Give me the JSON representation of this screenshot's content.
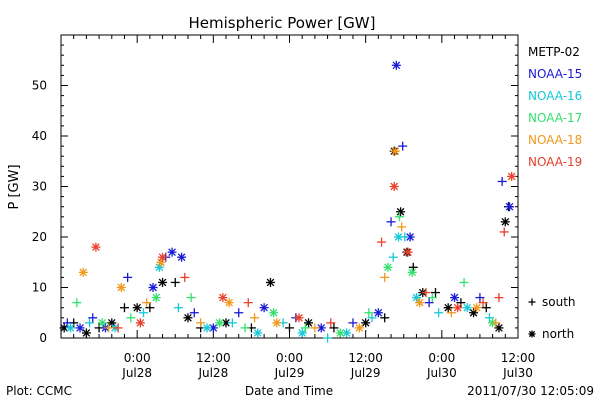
{
  "chart_data": {
    "type": "scatter",
    "title": "Hemispheric Power [GW]",
    "xlabel": "Date and Time",
    "ylabel": "P [GW]",
    "xlim": [
      "2011-07-27 12:00",
      "2011-07-30 12:00"
    ],
    "ylim": [
      0,
      60
    ],
    "x_tick_labels": [
      {
        "x": "2011-07-28 00:00",
        "time": "0:00",
        "date": "Jul28"
      },
      {
        "x": "2011-07-28 12:00",
        "time": "12:00",
        "date": "Jul28"
      },
      {
        "x": "2011-07-29 00:00",
        "time": "0:00",
        "date": "Jul29"
      },
      {
        "x": "2011-07-29 12:00",
        "time": "12:00",
        "date": "Jul29"
      },
      {
        "x": "2011-07-30 00:00",
        "time": "0:00",
        "date": "Jul30"
      },
      {
        "x": "2011-07-30 12:00",
        "time": "12:00",
        "date": "Jul30"
      }
    ],
    "y_ticks": [
      0,
      10,
      20,
      30,
      40,
      50
    ],
    "grid": false,
    "legend_position": "right",
    "marker_legend": [
      {
        "marker": "+",
        "label": "south"
      },
      {
        "marker": "*",
        "label": "north"
      }
    ],
    "series": [
      {
        "name": "METP-02",
        "color": "#000000",
        "points": [
          {
            "x": "2011-07-27 12:30",
            "y": 2,
            "m": "*"
          },
          {
            "x": "2011-07-27 14:00",
            "y": 3,
            "m": "+"
          },
          {
            "x": "2011-07-27 16:00",
            "y": 1,
            "m": "*"
          },
          {
            "x": "2011-07-27 18:00",
            "y": 2,
            "m": "+"
          },
          {
            "x": "2011-07-27 20:00",
            "y": 3,
            "m": "*"
          },
          {
            "x": "2011-07-27 22:00",
            "y": 6,
            "m": "+"
          },
          {
            "x": "2011-07-28 00:00",
            "y": 6,
            "m": "*"
          },
          {
            "x": "2011-07-28 02:00",
            "y": 6,
            "m": "+"
          },
          {
            "x": "2011-07-28 04:00",
            "y": 11,
            "m": "*"
          },
          {
            "x": "2011-07-28 06:00",
            "y": 11,
            "m": "+"
          },
          {
            "x": "2011-07-28 08:00",
            "y": 4,
            "m": "*"
          },
          {
            "x": "2011-07-28 10:00",
            "y": 2,
            "m": "+"
          },
          {
            "x": "2011-07-28 14:00",
            "y": 3,
            "m": "*"
          },
          {
            "x": "2011-07-28 18:00",
            "y": 2,
            "m": "+"
          },
          {
            "x": "2011-07-28 21:00",
            "y": 11,
            "m": "*"
          },
          {
            "x": "2011-07-29 00:00",
            "y": 2,
            "m": "+"
          },
          {
            "x": "2011-07-29 03:00",
            "y": 3,
            "m": "*"
          },
          {
            "x": "2011-07-29 07:00",
            "y": 2,
            "m": "+"
          },
          {
            "x": "2011-07-29 12:00",
            "y": 3,
            "m": "*"
          },
          {
            "x": "2011-07-29 15:00",
            "y": 4,
            "m": "+"
          },
          {
            "x": "2011-07-29 16:30",
            "y": 37,
            "m": "*"
          },
          {
            "x": "2011-07-29 17:30",
            "y": 25,
            "m": "*"
          },
          {
            "x": "2011-07-29 18:30",
            "y": 17,
            "m": "*"
          },
          {
            "x": "2011-07-29 19:30",
            "y": 14,
            "m": "+"
          },
          {
            "x": "2011-07-29 21:00",
            "y": 9,
            "m": "*"
          },
          {
            "x": "2011-07-29 23:00",
            "y": 9,
            "m": "+"
          },
          {
            "x": "2011-07-30 01:00",
            "y": 6,
            "m": "*"
          },
          {
            "x": "2011-07-30 03:00",
            "y": 7,
            "m": "+"
          },
          {
            "x": "2011-07-30 05:00",
            "y": 5,
            "m": "*"
          },
          {
            "x": "2011-07-30 07:00",
            "y": 6,
            "m": "+"
          },
          {
            "x": "2011-07-30 09:00",
            "y": 2,
            "m": "*"
          },
          {
            "x": "2011-07-30 10:00",
            "y": 23,
            "m": "*"
          },
          {
            "x": "2011-07-30 10:30",
            "y": 26,
            "m": "+"
          }
        ]
      },
      {
        "name": "NOAA-15",
        "color": "#1a1ad6",
        "points": [
          {
            "x": "2011-07-27 13:00",
            "y": 3,
            "m": "+"
          },
          {
            "x": "2011-07-27 15:00",
            "y": 2,
            "m": "*"
          },
          {
            "x": "2011-07-27 17:00",
            "y": 4,
            "m": "+"
          },
          {
            "x": "2011-07-27 19:00",
            "y": 2,
            "m": "*"
          },
          {
            "x": "2011-07-27 22:30",
            "y": 12,
            "m": "+"
          },
          {
            "x": "2011-07-28 02:30",
            "y": 10,
            "m": "*"
          },
          {
            "x": "2011-07-28 04:30",
            "y": 16,
            "m": "+"
          },
          {
            "x": "2011-07-28 05:30",
            "y": 17,
            "m": "*"
          },
          {
            "x": "2011-07-28 07:00",
            "y": 16,
            "m": "*"
          },
          {
            "x": "2011-07-28 09:00",
            "y": 5,
            "m": "+"
          },
          {
            "x": "2011-07-28 12:00",
            "y": 2,
            "m": "*"
          },
          {
            "x": "2011-07-28 16:00",
            "y": 5,
            "m": "+"
          },
          {
            "x": "2011-07-28 20:00",
            "y": 6,
            "m": "*"
          },
          {
            "x": "2011-07-29 01:00",
            "y": 4,
            "m": "+"
          },
          {
            "x": "2011-07-29 05:00",
            "y": 2,
            "m": "*"
          },
          {
            "x": "2011-07-29 10:00",
            "y": 3,
            "m": "+"
          },
          {
            "x": "2011-07-29 14:00",
            "y": 5,
            "m": "*"
          },
          {
            "x": "2011-07-29 16:00",
            "y": 23,
            "m": "+"
          },
          {
            "x": "2011-07-29 16:50",
            "y": 54,
            "m": "*"
          },
          {
            "x": "2011-07-29 17:50",
            "y": 38,
            "m": "+"
          },
          {
            "x": "2011-07-29 19:00",
            "y": 20,
            "m": "*"
          },
          {
            "x": "2011-07-29 22:00",
            "y": 7,
            "m": "+"
          },
          {
            "x": "2011-07-30 02:00",
            "y": 8,
            "m": "*"
          },
          {
            "x": "2011-07-30 06:00",
            "y": 8,
            "m": "+"
          },
          {
            "x": "2011-07-30 09:30",
            "y": 31,
            "m": "+"
          },
          {
            "x": "2011-07-30 10:40",
            "y": 26,
            "m": "*"
          }
        ]
      },
      {
        "name": "NOAA-16",
        "color": "#16c8d9",
        "points": [
          {
            "x": "2011-07-27 13:30",
            "y": 2,
            "m": "*"
          },
          {
            "x": "2011-07-27 16:30",
            "y": 3,
            "m": "+"
          },
          {
            "x": "2011-07-27 20:30",
            "y": 2,
            "m": "*"
          },
          {
            "x": "2011-07-28 01:00",
            "y": 5,
            "m": "+"
          },
          {
            "x": "2011-07-28 03:30",
            "y": 14,
            "m": "*"
          },
          {
            "x": "2011-07-28 06:30",
            "y": 6,
            "m": "+"
          },
          {
            "x": "2011-07-28 11:00",
            "y": 2,
            "m": "*"
          },
          {
            "x": "2011-07-28 15:00",
            "y": 3,
            "m": "+"
          },
          {
            "x": "2011-07-28 19:00",
            "y": 1,
            "m": "*"
          },
          {
            "x": "2011-07-28 23:00",
            "y": 3,
            "m": "+"
          },
          {
            "x": "2011-07-29 02:00",
            "y": 1,
            "m": "*"
          },
          {
            "x": "2011-07-29 06:00",
            "y": 0,
            "m": "+"
          },
          {
            "x": "2011-07-29 09:00",
            "y": 1,
            "m": "*"
          },
          {
            "x": "2011-07-29 13:00",
            "y": 4,
            "m": "+"
          },
          {
            "x": "2011-07-29 16:20",
            "y": 16,
            "m": "+"
          },
          {
            "x": "2011-07-29 17:10",
            "y": 20,
            "m": "*"
          },
          {
            "x": "2011-07-29 18:10",
            "y": 20,
            "m": "+"
          },
          {
            "x": "2011-07-29 20:00",
            "y": 8,
            "m": "*"
          },
          {
            "x": "2011-07-29 23:30",
            "y": 5,
            "m": "+"
          },
          {
            "x": "2011-07-30 04:00",
            "y": 6,
            "m": "*"
          },
          {
            "x": "2011-07-30 07:30",
            "y": 4,
            "m": "+"
          }
        ]
      },
      {
        "name": "NOAA-17",
        "color": "#34e06e",
        "points": [
          {
            "x": "2011-07-27 14:30",
            "y": 7,
            "m": "+"
          },
          {
            "x": "2011-07-27 18:30",
            "y": 3,
            "m": "*"
          },
          {
            "x": "2011-07-27 23:00",
            "y": 4,
            "m": "+"
          },
          {
            "x": "2011-07-28 03:00",
            "y": 8,
            "m": "*"
          },
          {
            "x": "2011-07-28 08:30",
            "y": 8,
            "m": "+"
          },
          {
            "x": "2011-07-28 13:00",
            "y": 3,
            "m": "*"
          },
          {
            "x": "2011-07-28 17:00",
            "y": 2,
            "m": "+"
          },
          {
            "x": "2011-07-28 21:30",
            "y": 5,
            "m": "*"
          },
          {
            "x": "2011-07-29 02:30",
            "y": 2,
            "m": "+"
          },
          {
            "x": "2011-07-29 08:00",
            "y": 1,
            "m": "*"
          },
          {
            "x": "2011-07-29 12:30",
            "y": 5,
            "m": "+"
          },
          {
            "x": "2011-07-29 15:30",
            "y": 14,
            "m": "*"
          },
          {
            "x": "2011-07-29 17:20",
            "y": 24,
            "m": "+"
          },
          {
            "x": "2011-07-29 19:20",
            "y": 13,
            "m": "*"
          },
          {
            "x": "2011-07-29 22:30",
            "y": 8,
            "m": "+"
          },
          {
            "x": "2011-07-30 03:30",
            "y": 11,
            "m": "+"
          },
          {
            "x": "2011-07-30 08:00",
            "y": 3,
            "m": "*"
          }
        ]
      },
      {
        "name": "NOAA-18",
        "color": "#f0981a",
        "points": [
          {
            "x": "2011-07-27 15:30",
            "y": 13,
            "m": "*"
          },
          {
            "x": "2011-07-27 19:30",
            "y": 2,
            "m": "+"
          },
          {
            "x": "2011-07-27 21:30",
            "y": 10,
            "m": "*"
          },
          {
            "x": "2011-07-28 01:30",
            "y": 7,
            "m": "+"
          },
          {
            "x": "2011-07-28 03:45",
            "y": 15,
            "m": "*"
          },
          {
            "x": "2011-07-28 10:00",
            "y": 3,
            "m": "+"
          },
          {
            "x": "2011-07-28 14:30",
            "y": 7,
            "m": "*"
          },
          {
            "x": "2011-07-28 18:30",
            "y": 4,
            "m": "+"
          },
          {
            "x": "2011-07-28 22:00",
            "y": 3,
            "m": "*"
          },
          {
            "x": "2011-07-29 04:00",
            "y": 2,
            "m": "+"
          },
          {
            "x": "2011-07-29 11:00",
            "y": 2,
            "m": "*"
          },
          {
            "x": "2011-07-29 15:00",
            "y": 12,
            "m": "+"
          },
          {
            "x": "2011-07-29 16:40",
            "y": 37,
            "m": "*"
          },
          {
            "x": "2011-07-29 17:40",
            "y": 22,
            "m": "+"
          },
          {
            "x": "2011-07-29 20:30",
            "y": 7,
            "m": "*"
          },
          {
            "x": "2011-07-30 01:30",
            "y": 5,
            "m": "+"
          },
          {
            "x": "2011-07-30 05:30",
            "y": 6,
            "m": "*"
          },
          {
            "x": "2011-07-30 08:30",
            "y": 3,
            "m": "+"
          }
        ]
      },
      {
        "name": "NOAA-19",
        "color": "#e8402a",
        "points": [
          {
            "x": "2011-07-27 17:30",
            "y": 18,
            "m": "*"
          },
          {
            "x": "2011-07-27 21:00",
            "y": 2,
            "m": "+"
          },
          {
            "x": "2011-07-28 00:30",
            "y": 3,
            "m": "*"
          },
          {
            "x": "2011-07-28 04:00",
            "y": 16,
            "m": "*"
          },
          {
            "x": "2011-07-28 07:30",
            "y": 12,
            "m": "+"
          },
          {
            "x": "2011-07-28 13:30",
            "y": 8,
            "m": "*"
          },
          {
            "x": "2011-07-28 17:30",
            "y": 7,
            "m": "+"
          },
          {
            "x": "2011-07-29 01:30",
            "y": 4,
            "m": "*"
          },
          {
            "x": "2011-07-29 06:30",
            "y": 3,
            "m": "+"
          },
          {
            "x": "2011-07-29 14:30",
            "y": 19,
            "m": "+"
          },
          {
            "x": "2011-07-29 16:30",
            "y": 30,
            "m": "*"
          },
          {
            "x": "2011-07-29 18:40",
            "y": 17,
            "m": "*"
          },
          {
            "x": "2011-07-29 21:30",
            "y": 9,
            "m": "+"
          },
          {
            "x": "2011-07-30 02:30",
            "y": 6,
            "m": "*"
          },
          {
            "x": "2011-07-30 06:30",
            "y": 7,
            "m": "+"
          },
          {
            "x": "2011-07-30 09:00",
            "y": 8,
            "m": "+"
          },
          {
            "x": "2011-07-30 09:50",
            "y": 21,
            "m": "+"
          },
          {
            "x": "2011-07-30 11:00",
            "y": 32,
            "m": "*"
          }
        ]
      }
    ]
  },
  "footer": {
    "left": "Plot: CCMC",
    "right": "2011/07/30 12:05:09"
  }
}
